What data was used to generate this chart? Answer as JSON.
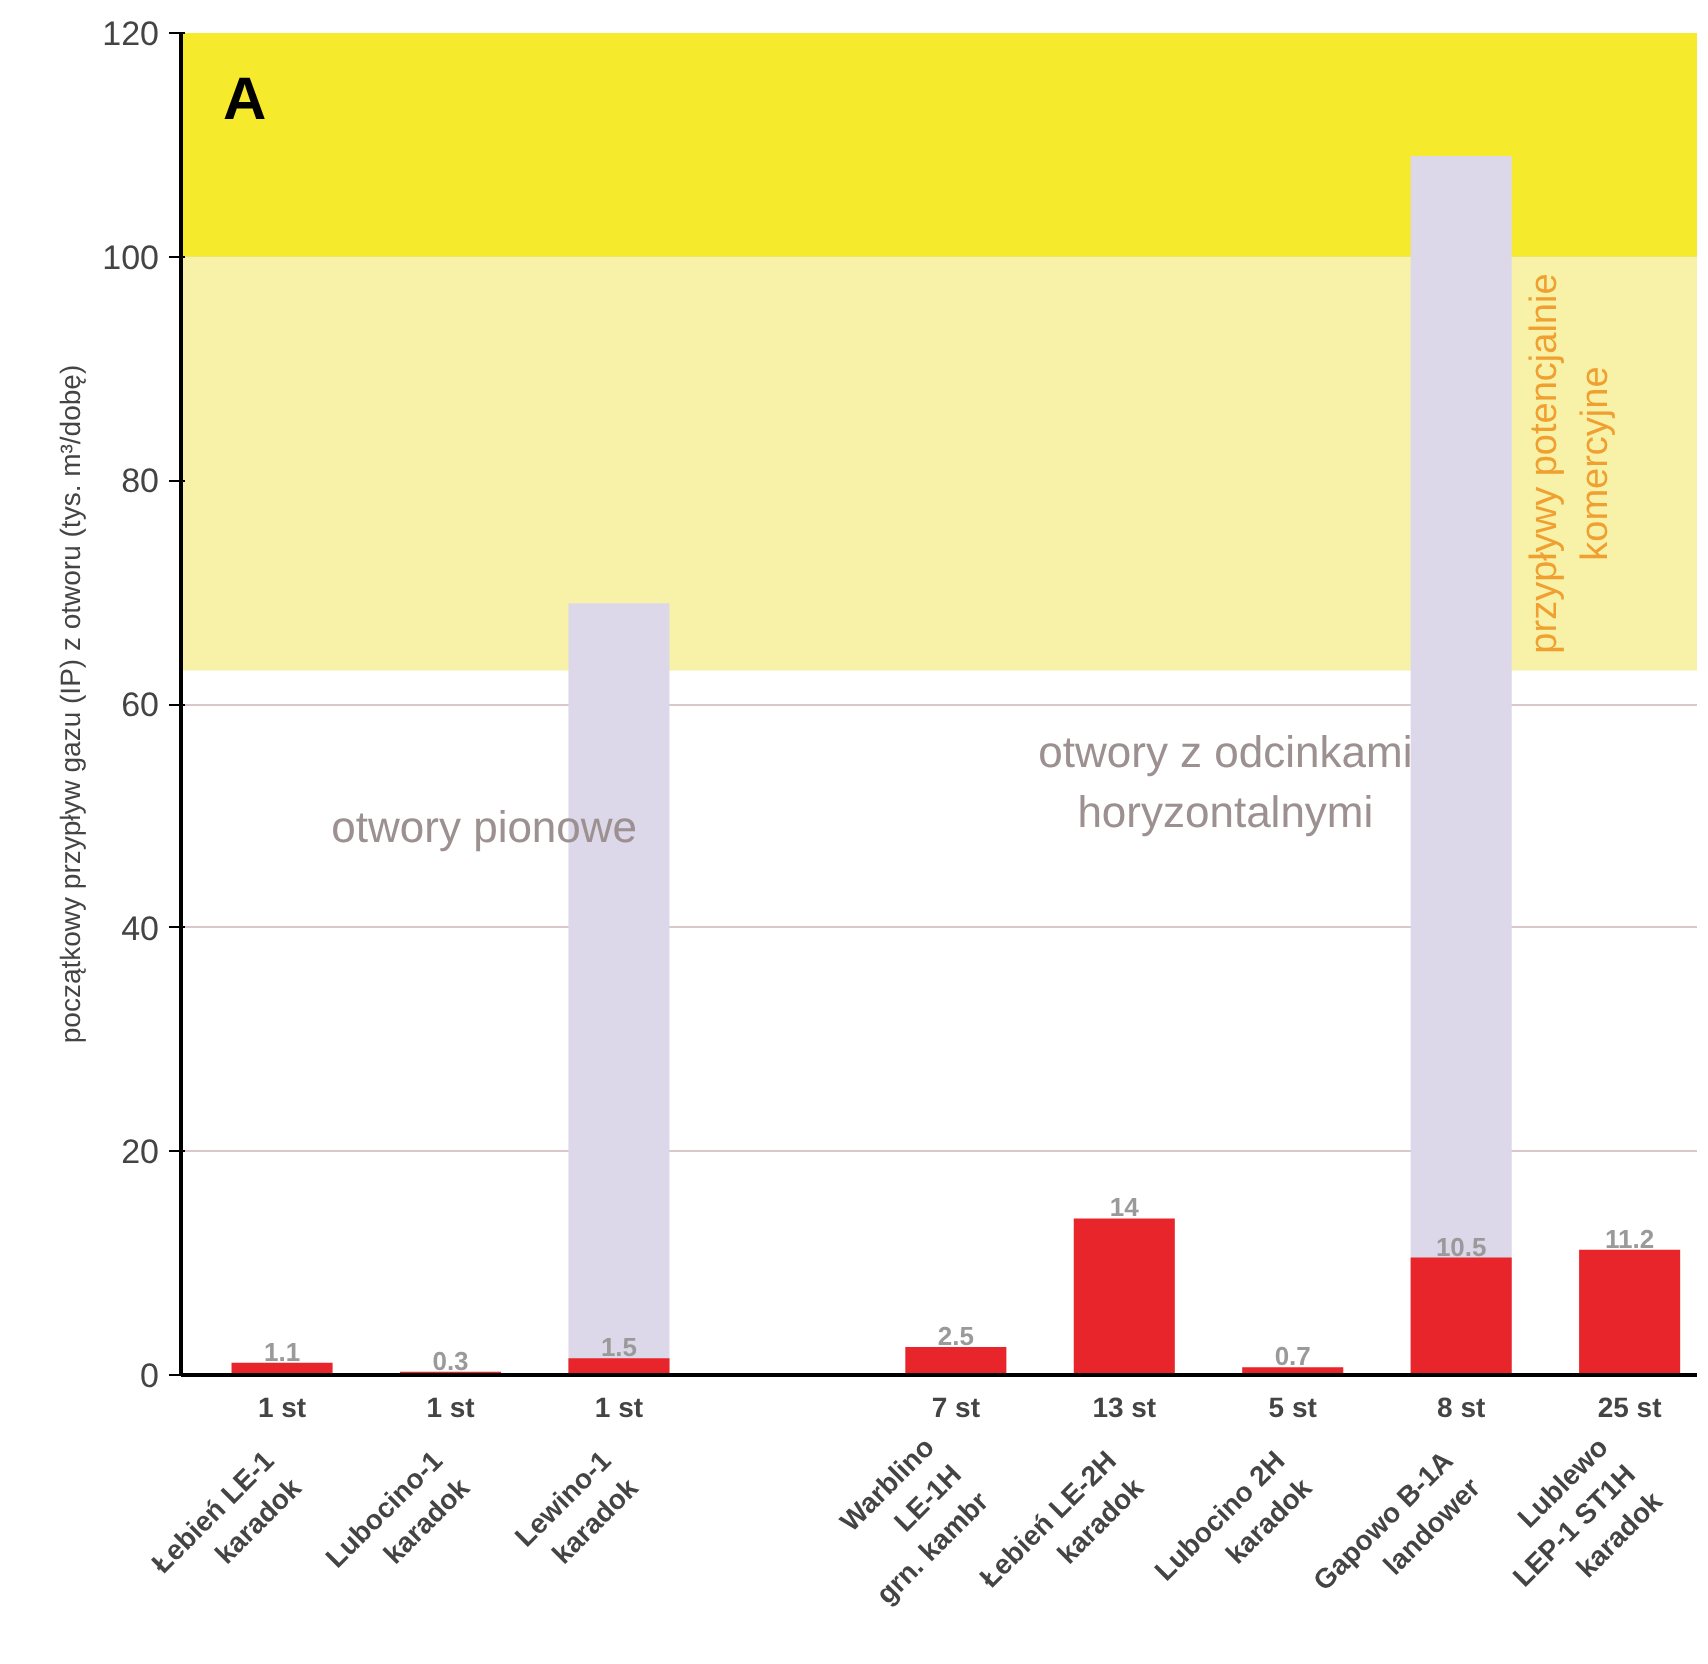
{
  "chart_data": {
    "type": "bar",
    "ylabel": "początkowy przypływ gazu (IP) z otworu (tys. m³/dobę)",
    "categories": [
      "Łebień LE-1\nkaradok",
      "Lubocino-1\nkaradok",
      "Lewino-1\nkaradok",
      null,
      "Warblino\nLE-1H\ngrn. kambr",
      "Łebień LE-2H\nkaradok",
      "Lubocino 2H\nkaradok",
      "Gapowo B-1A\nlandower",
      "Lublewo\nLEP-1 ST1H\nkaradok"
    ],
    "series": [
      {
        "color": "#dcd8ea",
        "values": [
          null,
          null,
          69,
          null,
          null,
          null,
          null,
          109,
          null
        ]
      },
      {
        "color": "#e8252a",
        "values": [
          1.1,
          0.3,
          1.5,
          null,
          2.5,
          14,
          0.7,
          10.5,
          11.2
        ],
        "data_labels": true
      }
    ],
    "ylim": [
      0,
      120
    ],
    "yticks": [
      0,
      20,
      40,
      60,
      80,
      100,
      120
    ],
    "grid": "y",
    "bands": [
      {
        "axis": "y",
        "from": 100,
        "to": 120,
        "color": "#f5ea2c"
      },
      {
        "axis": "y",
        "from": 63,
        "to": 100,
        "color": "#f8f2a8",
        "label": "przypływy potencjalnie\nkomercyjne"
      }
    ],
    "annotations": [
      "A",
      "otwory pionowe",
      "otwory z odcinkami\nhoryzontalnymi",
      "1 st",
      "1 st",
      "1 st",
      "7 st",
      "13 st",
      "5 st",
      "8 st",
      "25 st"
    ]
  }
}
